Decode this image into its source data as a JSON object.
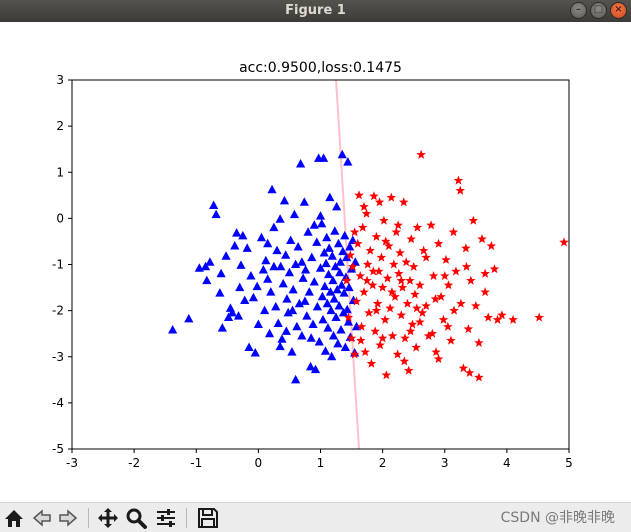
{
  "window": {
    "title": "Figure 1",
    "minimize_icon": "minimize-icon",
    "maximize_icon": "maximize-icon",
    "close_icon": "close-icon"
  },
  "toolbar": {
    "buttons": [
      {
        "name": "home-button",
        "icon": "home-icon"
      },
      {
        "name": "back-button",
        "icon": "arrow-left-icon"
      },
      {
        "name": "forward-button",
        "icon": "arrow-right-icon"
      },
      {
        "name": "pan-button",
        "icon": "move-icon"
      },
      {
        "name": "zoom-button",
        "icon": "magnifier-icon"
      },
      {
        "name": "configure-subplots-button",
        "icon": "sliders-icon"
      },
      {
        "name": "save-button",
        "icon": "floppy-disk-icon"
      }
    ],
    "watermark": "CSDN @非晚非晚"
  },
  "chart_data": {
    "type": "scatter",
    "title": "acc:0.9500,loss:0.1475",
    "xlim": [
      -3,
      5
    ],
    "ylim": [
      -5,
      3
    ],
    "xticks": [
      -3,
      -2,
      -1,
      0,
      1,
      2,
      3,
      4,
      5
    ],
    "yticks": [
      -5,
      -4,
      -3,
      -2,
      -1,
      0,
      1,
      2,
      3
    ],
    "grid": false,
    "colors": {
      "class_a": "#0000ff",
      "class_b": "#ff0000",
      "boundary": "#ffc0cb"
    },
    "boundary": {
      "x": [
        1.25,
        1.62
      ],
      "y": [
        3,
        -5
      ]
    },
    "series": [
      {
        "marker": "triangle",
        "color": "#0000ff",
        "points": [
          [
            -1.38,
            -2.42
          ],
          [
            -1.12,
            -2.18
          ],
          [
            -0.95,
            -1.08
          ],
          [
            -0.85,
            -1.05
          ],
          [
            -0.83,
            -1.35
          ],
          [
            -0.78,
            -0.95
          ],
          [
            -0.72,
            0.28
          ],
          [
            -0.68,
            0.08
          ],
          [
            -0.62,
            -1.62
          ],
          [
            -0.58,
            -2.38
          ],
          [
            -0.52,
            -0.82
          ],
          [
            -0.48,
            -2.15
          ],
          [
            -0.45,
            -1.95
          ],
          [
            -0.42,
            -2.05
          ],
          [
            -0.38,
            -0.6
          ],
          [
            -0.35,
            -0.32
          ],
          [
            -0.32,
            -2.12
          ],
          [
            -0.28,
            -1.02
          ],
          [
            -0.25,
            -0.38
          ],
          [
            -0.22,
            -1.78
          ],
          [
            -0.18,
            -0.65
          ],
          [
            -0.15,
            -2.8
          ],
          [
            -0.12,
            -1.25
          ],
          [
            -0.08,
            -1.72
          ],
          [
            -0.05,
            -2.92
          ],
          [
            -0.02,
            -1.48
          ],
          [
            0.05,
            -0.42
          ],
          [
            0.08,
            -1.12
          ],
          [
            0.12,
            -0.92
          ],
          [
            0.15,
            -1.32
          ],
          [
            0.18,
            -2.5
          ],
          [
            0.2,
            -1.6
          ],
          [
            0.22,
            0.62
          ],
          [
            0.25,
            -0.2
          ],
          [
            0.28,
            -1.92
          ],
          [
            0.3,
            -0.7
          ],
          [
            0.32,
            -2.28
          ],
          [
            0.35,
            -0.02
          ],
          [
            0.36,
            -1.05
          ],
          [
            0.38,
            -2.62
          ],
          [
            0.4,
            -1.42
          ],
          [
            0.42,
            0.38
          ],
          [
            0.44,
            -0.8
          ],
          [
            0.46,
            -1.75
          ],
          [
            0.48,
            -2.05
          ],
          [
            0.5,
            -1.18
          ],
          [
            0.52,
            -0.48
          ],
          [
            0.54,
            -2.9
          ],
          [
            0.56,
            -1.55
          ],
          [
            0.58,
            0.08
          ],
          [
            0.6,
            -1.0
          ],
          [
            0.62,
            -2.35
          ],
          [
            0.64,
            -0.62
          ],
          [
            0.66,
            -1.85
          ],
          [
            0.68,
            1.18
          ],
          [
            0.7,
            -2.55
          ],
          [
            0.72,
            -1.3
          ],
          [
            0.74,
            0.35
          ],
          [
            0.76,
            -1.12
          ],
          [
            0.78,
            -2.12
          ],
          [
            0.8,
            -0.3
          ],
          [
            0.82,
            -1.6
          ],
          [
            0.84,
            -3.22
          ],
          [
            0.86,
            -0.85
          ],
          [
            0.88,
            -2.3
          ],
          [
            0.9,
            -1.38
          ],
          [
            0.92,
            -3.28
          ],
          [
            0.94,
            -0.52
          ],
          [
            0.95,
            -1.92
          ],
          [
            0.97,
            1.3
          ],
          [
            0.98,
            -2.68
          ],
          [
            1.0,
            -1.08
          ],
          [
            1.02,
            -0.12
          ],
          [
            1.03,
            -1.7
          ],
          [
            1.04,
            -2.2
          ],
          [
            1.05,
            1.3
          ],
          [
            1.06,
            -0.75
          ],
          [
            1.07,
            -1.48
          ],
          [
            1.08,
            -2.88
          ],
          [
            1.09,
            -0.98
          ],
          [
            1.1,
            -0.42
          ],
          [
            1.11,
            -1.85
          ],
          [
            1.12,
            -2.38
          ],
          [
            1.13,
            -1.22
          ],
          [
            1.14,
            -0.65
          ],
          [
            1.15,
            0.45
          ],
          [
            1.16,
            -1.6
          ],
          [
            1.17,
            -2.0
          ],
          [
            1.18,
            -3.0
          ],
          [
            1.19,
            -0.82
          ],
          [
            1.2,
            -1.35
          ],
          [
            1.21,
            -2.55
          ],
          [
            1.22,
            -1.75
          ],
          [
            1.23,
            -0.28
          ],
          [
            1.24,
            -1.05
          ],
          [
            1.25,
            -2.15
          ],
          [
            1.26,
            0.25
          ],
          [
            1.27,
            -1.55
          ],
          [
            1.28,
            -2.72
          ],
          [
            1.29,
            -0.55
          ],
          [
            1.3,
            -1.9
          ],
          [
            1.31,
            -1.18
          ],
          [
            1.32,
            -0.95
          ],
          [
            1.33,
            -2.42
          ],
          [
            1.34,
            -1.45
          ],
          [
            1.35,
            1.38
          ],
          [
            1.36,
            -0.72
          ],
          [
            1.37,
            -2.05
          ],
          [
            1.38,
            -1.62
          ],
          [
            1.39,
            -0.38
          ],
          [
            1.4,
            -2.8
          ],
          [
            1.41,
            -1.28
          ],
          [
            1.42,
            -0.85
          ],
          [
            1.43,
            -1.98
          ],
          [
            1.44,
            1.22
          ],
          [
            1.45,
            -2.25
          ],
          [
            1.46,
            -1.5
          ],
          [
            1.47,
            -0.62
          ],
          [
            1.48,
            -2.58
          ],
          [
            1.5,
            -1.1
          ],
          [
            1.52,
            -0.48
          ],
          [
            1.53,
            -1.78
          ],
          [
            1.55,
            -2.92
          ],
          [
            1.56,
            -0.95
          ],
          [
            1.58,
            -2.35
          ],
          [
            0.15,
            -0.55
          ],
          [
            0.35,
            -2.78
          ],
          [
            0.6,
            -3.5
          ],
          [
            -0.3,
            -1.5
          ],
          [
            0.0,
            -2.3
          ],
          [
            0.25,
            -1.05
          ],
          [
            0.55,
            -2.0
          ],
          [
            0.75,
            -1.8
          ],
          [
            0.45,
            -2.45
          ],
          [
            0.85,
            -2.6
          ],
          [
            0.1,
            -2.0
          ],
          [
            -0.6,
            -1.2
          ],
          [
            0.9,
            -0.15
          ],
          [
            1.0,
            0.05
          ],
          [
            0.7,
            -0.95
          ]
        ]
      },
      {
        "marker": "star",
        "color": "#ff0000",
        "points": [
          [
            1.42,
            -1.35
          ],
          [
            1.45,
            -2.15
          ],
          [
            1.48,
            -0.8
          ],
          [
            1.5,
            -2.6
          ],
          [
            1.52,
            -1.05
          ],
          [
            1.55,
            -0.3
          ],
          [
            1.58,
            -1.8
          ],
          [
            1.6,
            -0.55
          ],
          [
            1.62,
            0.5
          ],
          [
            1.64,
            -1.25
          ],
          [
            1.66,
            -2.35
          ],
          [
            1.68,
            -0.2
          ],
          [
            1.7,
            -1.6
          ],
          [
            1.72,
            -2.9
          ],
          [
            1.74,
            0.1
          ],
          [
            1.76,
            -1.0
          ],
          [
            1.78,
            -2.05
          ],
          [
            1.8,
            -0.7
          ],
          [
            1.82,
            -3.15
          ],
          [
            1.84,
            -1.45
          ],
          [
            1.86,
            0.48
          ],
          [
            1.88,
            -2.45
          ],
          [
            1.9,
            -0.4
          ],
          [
            1.92,
            -1.85
          ],
          [
            1.94,
            -1.15
          ],
          [
            1.96,
            -2.75
          ],
          [
            1.98,
            -0.85
          ],
          [
            2.0,
            -1.5
          ],
          [
            2.02,
            -0.05
          ],
          [
            2.04,
            -2.2
          ],
          [
            2.06,
            -3.4
          ],
          [
            2.08,
            -1.3
          ],
          [
            2.1,
            -0.6
          ],
          [
            2.12,
            -1.95
          ],
          [
            2.14,
            0.45
          ],
          [
            2.16,
            -2.55
          ],
          [
            2.18,
            -1.0
          ],
          [
            2.2,
            -1.7
          ],
          [
            2.22,
            -0.3
          ],
          [
            2.24,
            -2.95
          ],
          [
            2.26,
            -1.2
          ],
          [
            2.28,
            -0.75
          ],
          [
            2.3,
            -2.1
          ],
          [
            2.32,
            -1.5
          ],
          [
            2.34,
            0.35
          ],
          [
            2.36,
            -2.6
          ],
          [
            2.38,
            -0.95
          ],
          [
            2.4,
            -1.85
          ],
          [
            2.42,
            -3.3
          ],
          [
            2.44,
            -1.35
          ],
          [
            2.46,
            -0.45
          ],
          [
            2.48,
            -2.3
          ],
          [
            2.5,
            -1.05
          ],
          [
            2.52,
            -1.65
          ],
          [
            2.54,
            -2.8
          ],
          [
            2.56,
            -0.2
          ],
          [
            2.6,
            -1.45
          ],
          [
            2.62,
            1.38
          ],
          [
            2.64,
            -2.05
          ],
          [
            2.66,
            -0.7
          ],
          [
            2.7,
            -1.9
          ],
          [
            2.74,
            -2.55
          ],
          [
            2.78,
            -0.15
          ],
          [
            2.82,
            -1.25
          ],
          [
            2.86,
            -2.9
          ],
          [
            2.9,
            -0.55
          ],
          [
            2.94,
            -1.7
          ],
          [
            2.98,
            -2.2
          ],
          [
            3.02,
            -0.9
          ],
          [
            3.06,
            -1.45
          ],
          [
            3.1,
            -2.65
          ],
          [
            3.14,
            -0.3
          ],
          [
            3.18,
            -1.15
          ],
          [
            3.22,
            0.82
          ],
          [
            3.26,
            -1.85
          ],
          [
            3.3,
            -3.25
          ],
          [
            3.34,
            -0.65
          ],
          [
            3.38,
            -2.4
          ],
          [
            3.42,
            -1.35
          ],
          [
            3.46,
            -0.05
          ],
          [
            3.5,
            -1.9
          ],
          [
            3.55,
            -2.7
          ],
          [
            3.6,
            -0.45
          ],
          [
            3.65,
            -1.6
          ],
          [
            3.7,
            -2.15
          ],
          [
            3.75,
            -0.6
          ],
          [
            3.8,
            -1.1
          ],
          [
            3.85,
            -2.2
          ],
          [
            3.92,
            -2.1
          ],
          [
            4.1,
            -2.2
          ],
          [
            4.52,
            -2.15
          ],
          [
            4.92,
            -0.52
          ],
          [
            3.4,
            -3.35
          ],
          [
            3.55,
            -3.45
          ],
          [
            2.8,
            -2.5
          ],
          [
            2.35,
            -3.1
          ],
          [
            1.9,
            -2.0
          ],
          [
            2.05,
            -0.5
          ],
          [
            1.75,
            -1.35
          ],
          [
            2.55,
            -1.95
          ],
          [
            3.0,
            -1.25
          ],
          [
            2.15,
            -1.6
          ],
          [
            1.65,
            -2.65
          ],
          [
            1.95,
            0.35
          ],
          [
            2.7,
            -0.85
          ],
          [
            3.25,
            0.6
          ],
          [
            1.55,
            -2.95
          ],
          [
            2.45,
            -2.45
          ],
          [
            2.9,
            -3.05
          ],
          [
            3.15,
            -2.0
          ],
          [
            1.7,
            0.25
          ],
          [
            2.25,
            -0.15
          ],
          [
            2.85,
            -1.75
          ],
          [
            3.35,
            -1.05
          ],
          [
            3.65,
            -1.2
          ],
          [
            2.0,
            -2.6
          ],
          [
            1.85,
            -1.15
          ],
          [
            2.3,
            -1.35
          ],
          [
            2.6,
            -2.25
          ],
          [
            3.05,
            -2.35
          ]
        ]
      }
    ]
  }
}
